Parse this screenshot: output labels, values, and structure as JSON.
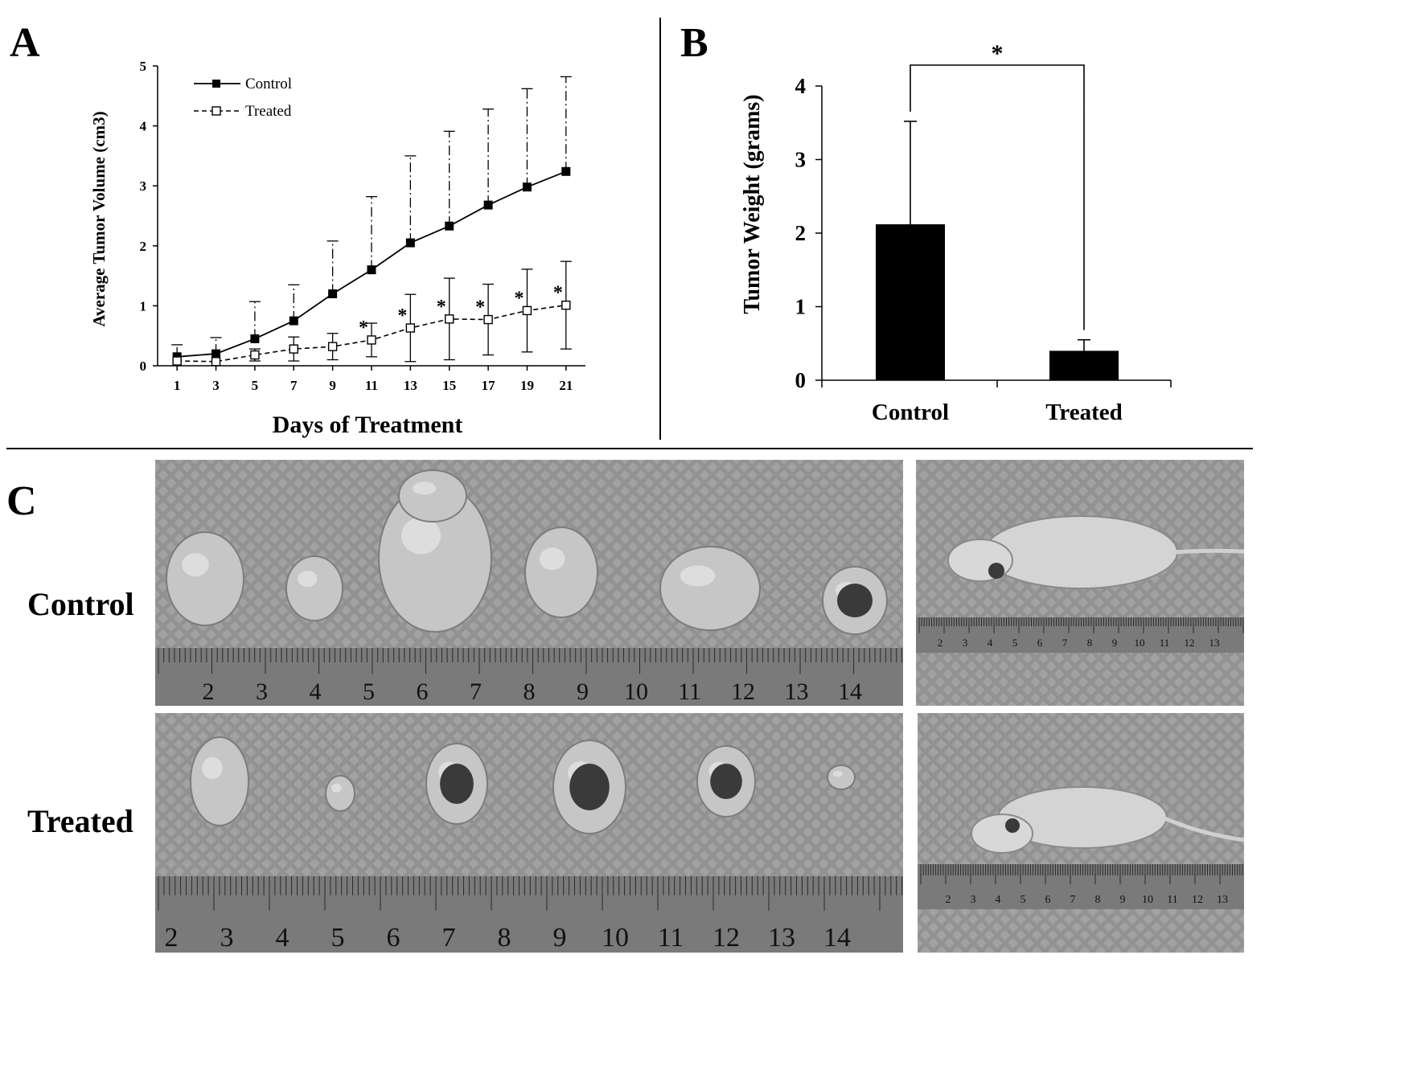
{
  "panels": {
    "A": "A",
    "B": "B",
    "C": "C"
  },
  "chart_data": [
    {
      "type": "line",
      "xlabel": "Days of Treatment",
      "ylabel": "Average Tumor Volume (cm3)",
      "x": [
        1,
        3,
        5,
        7,
        9,
        11,
        13,
        15,
        17,
        19,
        21
      ],
      "xlim": [
        0,
        22
      ],
      "ylim": [
        0,
        5
      ],
      "yticks": [
        0,
        1,
        2,
        3,
        4,
        5
      ],
      "legend_position": "top-left",
      "series": [
        {
          "name": "Control",
          "marker": "filled-square",
          "line": "solid",
          "values": [
            0.15,
            0.2,
            0.45,
            0.75,
            1.2,
            1.6,
            2.05,
            2.33,
            2.68,
            2.98,
            3.24
          ],
          "error": [
            0.2,
            0.27,
            0.62,
            0.6,
            0.88,
            1.22,
            1.45,
            1.58,
            1.6,
            1.64,
            1.58
          ]
        },
        {
          "name": "Treated",
          "marker": "open-square",
          "line": "dashed",
          "values": [
            0.08,
            0.07,
            0.18,
            0.28,
            0.32,
            0.43,
            0.63,
            0.78,
            0.77,
            0.92,
            1.01
          ],
          "error": [
            0.0,
            0.0,
            0.1,
            0.2,
            0.22,
            0.28,
            0.56,
            0.68,
            0.59,
            0.69,
            0.73
          ]
        }
      ],
      "significance": [
        "",
        "",
        "",
        "",
        "",
        "*",
        "*",
        "*",
        "*",
        "*",
        "*"
      ]
    },
    {
      "type": "bar",
      "ylabel": "Tumor Weight (grams)",
      "categories": [
        "Control",
        "Treated"
      ],
      "values": [
        2.12,
        0.4
      ],
      "error": [
        1.4,
        0.15
      ],
      "ylim": [
        0,
        4
      ],
      "yticks": [
        0,
        1,
        2,
        3,
        4
      ],
      "significance": "*"
    }
  ],
  "panel_c": {
    "row_labels": [
      "Control",
      "Treated"
    ],
    "ruler_numbers_control": [
      "2",
      "3",
      "4",
      "5",
      "6",
      "7",
      "8",
      "9",
      "10",
      "11",
      "12",
      "13",
      "14"
    ],
    "ruler_numbers_treated": [
      "2",
      "3",
      "4",
      "5",
      "6",
      "7",
      "8",
      "9",
      "10",
      "11",
      "12",
      "13",
      "14"
    ],
    "mouse_ruler_control": [
      "2",
      "3",
      "4",
      "5",
      "6",
      "7",
      "8",
      "9",
      "10",
      "11",
      "12",
      "13"
    ],
    "mouse_ruler_treated": [
      "2",
      "3",
      "4",
      "5",
      "6",
      "7",
      "8",
      "9",
      "10",
      "11",
      "12",
      "13"
    ]
  },
  "colors": {
    "ink": "#000000",
    "photo_bg": "#8f8f8f",
    "tumor": "#c9c9c9",
    "ruler": "#7d7d7d"
  }
}
